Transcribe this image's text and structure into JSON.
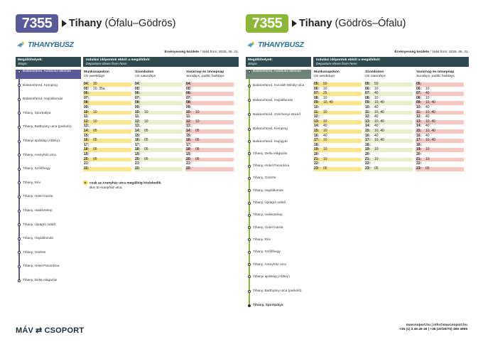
{
  "left": {
    "route": "7355",
    "badge_color": "#5b5a98",
    "line_color": "#5b5a98",
    "title_bold": "Tihany",
    "title_rest": "(Ófalu–Gödrös)",
    "logo": "TIHANYBUSZ",
    "valid_label": "Érvényesség kezdete",
    "valid_value": "/ Valid from: 2025. 06. 21.",
    "stops_hu": "Megállóhelyek:",
    "stops_en": "Stops:",
    "dep_hu": "Indulási időpontok ebből a megállóból:",
    "dep_en": "Departure times from here:",
    "columns": [
      {
        "hu": "Munkanapokon",
        "en": "On weekdays"
      },
      {
        "hu": "Szombaton",
        "en": "On saturdays"
      },
      {
        "hu": "Vasárnap és ünnepnap",
        "en": "Sundays, public holidays"
      }
    ],
    "stops": [
      "Balatonfüred, Autóbusz-állomás",
      "Balatonfüred, Kemping",
      "Balatonfüred, Hajóállomás",
      "Tihany, Sportpálya",
      "Tihany, Batthyány utca (parkoló)",
      "Tihanyi apátság (Abbey)",
      "Tihany, Aranyház utca",
      "Tihany, Szőlőhegy",
      "Tihany, Rév",
      "Tihany, Hotel Garda",
      "Tihany, Halásztelep",
      "Tihany, Újsägró üdülő",
      "Tihany, Hajóállomás",
      "Tihany, Gödrös",
      "Tihany, Hotel Panoráma",
      "Tihany, Delta elágazás"
    ],
    "rows": [
      {
        "h": "04:",
        "wd": "30",
        "sa": "",
        "su": ""
      },
      {
        "h": "05:",
        "wd": "10, 35a",
        "sa": "",
        "su": ""
      },
      {
        "h": "06:",
        "wd": "",
        "sa": "",
        "su": ""
      },
      {
        "h": "07:",
        "wd": "",
        "sa": "",
        "su": ""
      },
      {
        "h": "08:",
        "wd": "",
        "sa": "",
        "su": ""
      },
      {
        "h": "09:",
        "wd": "",
        "sa": "",
        "su": ""
      },
      {
        "h": "10:",
        "wd": "10",
        "sa": "10",
        "su": "10"
      },
      {
        "h": "11:",
        "wd": "",
        "sa": "",
        "su": ""
      },
      {
        "h": "12:",
        "wd": "10",
        "sa": "10",
        "su": "10"
      },
      {
        "h": "13:",
        "wd": "",
        "sa": "",
        "su": ""
      },
      {
        "h": "14:",
        "wd": "05",
        "sa": "05",
        "su": "05"
      },
      {
        "h": "15:",
        "wd": "",
        "sa": "",
        "su": ""
      },
      {
        "h": "16:",
        "wd": "05",
        "sa": "05",
        "su": "05"
      },
      {
        "h": "17:",
        "wd": "",
        "sa": "",
        "su": ""
      },
      {
        "h": "18:",
        "wd": "05",
        "sa": "05",
        "su": "05"
      },
      {
        "h": "19:",
        "wd": "",
        "sa": "",
        "su": ""
      },
      {
        "h": "20:",
        "wd": "05",
        "sa": "05",
        "su": "05"
      },
      {
        "h": "21:",
        "wd": "",
        "sa": "",
        "su": ""
      },
      {
        "h": "22:",
        "wd": "",
        "sa": "",
        "su": ""
      }
    ],
    "note_mark": "a",
    "note_hu": "csak az Aranyház utca megállóig közlekedik.",
    "note_en": "Bus to Aranyház utca."
  },
  "right": {
    "route": "7355",
    "badge_color": "#8cb636",
    "line_color": "#8cb636",
    "title_bold": "Tihany",
    "title_rest": "(Gödrös–Ófalu)",
    "logo": "TIHANYBUSZ",
    "valid_label": "Érvényesség kezdete",
    "valid_value": "/ Valid from: 2025. 06. 21.",
    "stops_hu": "Megállóhelyek:",
    "stops_en": "Stops:",
    "dep_hu": "Indulási időpontok ebből a megállóból:",
    "dep_en": "Departure times from here:",
    "columns": [
      {
        "hu": "Munkanapokon",
        "en": "On weekdays"
      },
      {
        "hu": "Szombaton",
        "en": "On saturdays"
      },
      {
        "hu": "Vasárnap és ünnepnap",
        "en": "Sundays, public holidays"
      }
    ],
    "stops": [
      "Balatonfüred, Autóbusz-állomás",
      "Balatonfüred, Horváth Mihály utca",
      "Balatonfüred, Hajóállomás",
      "Balatonfüred, Széchenyi-strand",
      "Balatonfüred, Kemping",
      "Balatonfüred, Hajógyár",
      "Tihany, Delta elágazás",
      "Tihany, Hotel Panoráma",
      "Tihany, Gödrös",
      "Tihany, Hajóállomás",
      "Tihany, Újsägró üdülő",
      "Tihany, Halásztelep",
      "Tihany, Hotel Garda",
      "Tihany, Rév",
      "Tihany, Szőlőhegy",
      "Tihany, Aranyház utca",
      "Tihanyi apátság (Abbey)",
      "Tihany, Batthyány utca (parkoló)",
      "Tihany, Sportpálya"
    ],
    "rows": [
      {
        "h": "05:",
        "wd": "50",
        "sa": "50",
        "su": ""
      },
      {
        "h": "06:",
        "wd": "10",
        "sa": "10",
        "su": "10"
      },
      {
        "h": "07:",
        "wd": "25",
        "sa": "40",
        "su": "40"
      },
      {
        "h": "08:",
        "wd": "10",
        "sa": "10",
        "su": "10"
      },
      {
        "h": "09:",
        "wd": "10, 40",
        "sa": "10, 40",
        "su": "10, 40"
      },
      {
        "h": "10:",
        "wd": "",
        "sa": "40",
        "su": "40"
      },
      {
        "h": "11:",
        "wd": "10",
        "sa": "10, 40",
        "su": "10, 40"
      },
      {
        "h": "12:",
        "wd": "",
        "sa": "40",
        "su": "40"
      },
      {
        "h": "13:",
        "wd": "10",
        "sa": "10, 40",
        "su": "10, 40"
      },
      {
        "h": "14:",
        "wd": "40",
        "sa": "40",
        "su": "40"
      },
      {
        "h": "15:",
        "wd": "10",
        "sa": "10, 40",
        "su": "10, 40"
      },
      {
        "h": "16:",
        "wd": "40",
        "sa": "40",
        "su": "40"
      },
      {
        "h": "17:",
        "wd": "10",
        "sa": "10, 40",
        "su": "10, 40"
      },
      {
        "h": "18:",
        "wd": "",
        "sa": "",
        "su": ""
      },
      {
        "h": "19:",
        "wd": "10",
        "sa": "10",
        "su": "10"
      },
      {
        "h": "20:",
        "wd": "",
        "sa": "",
        "su": ""
      },
      {
        "h": "21:",
        "wd": "10",
        "sa": "10",
        "su": "10"
      },
      {
        "h": "22:",
        "wd": "",
        "sa": "",
        "su": ""
      },
      {
        "h": "23:",
        "wd": "05",
        "sa": "05",
        "su": "05"
      }
    ]
  },
  "footer": {
    "brand_left": "MÁV",
    "brand_right": "CSOPORT",
    "web": "mavcsoport.hu",
    "email": " | info@mavcsoport.hu",
    "phone": "+36 (1) 3 49 49 49 | +36 (20/30/70) 499 4999"
  },
  "colors": {
    "header_bar": "#2e4a4f",
    "yellow_cell": "#f9e58c",
    "pink_cell": "#f4c7c3",
    "green_cell": "#e8efcb"
  }
}
